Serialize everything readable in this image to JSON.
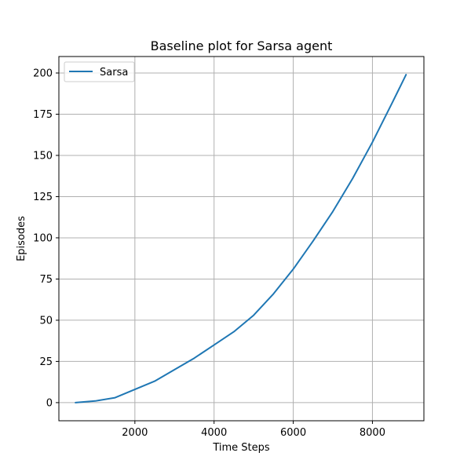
{
  "chart_data": {
    "type": "line",
    "title": "Baseline plot for Sarsa agent",
    "xlabel": "Time Steps",
    "ylabel": "Episodes",
    "xlim": [
      80,
      9300
    ],
    "ylim": [
      -11,
      210
    ],
    "xticks": [
      2000,
      4000,
      6000,
      8000
    ],
    "yticks": [
      0,
      25,
      50,
      75,
      100,
      125,
      150,
      175,
      200
    ],
    "grid": true,
    "legend_position": "top-left",
    "series": [
      {
        "name": "Sarsa",
        "color": "#1f77b4",
        "x": [
          500,
          1000,
          1500,
          2000,
          2500,
          3000,
          3500,
          4000,
          4500,
          5000,
          5500,
          6000,
          6500,
          7000,
          7500,
          8000,
          8500,
          8850
        ],
        "y": [
          0,
          1,
          3,
          8,
          13,
          20,
          27,
          35,
          43,
          53,
          66,
          81,
          98,
          116,
          136,
          158,
          182,
          199
        ]
      }
    ]
  }
}
